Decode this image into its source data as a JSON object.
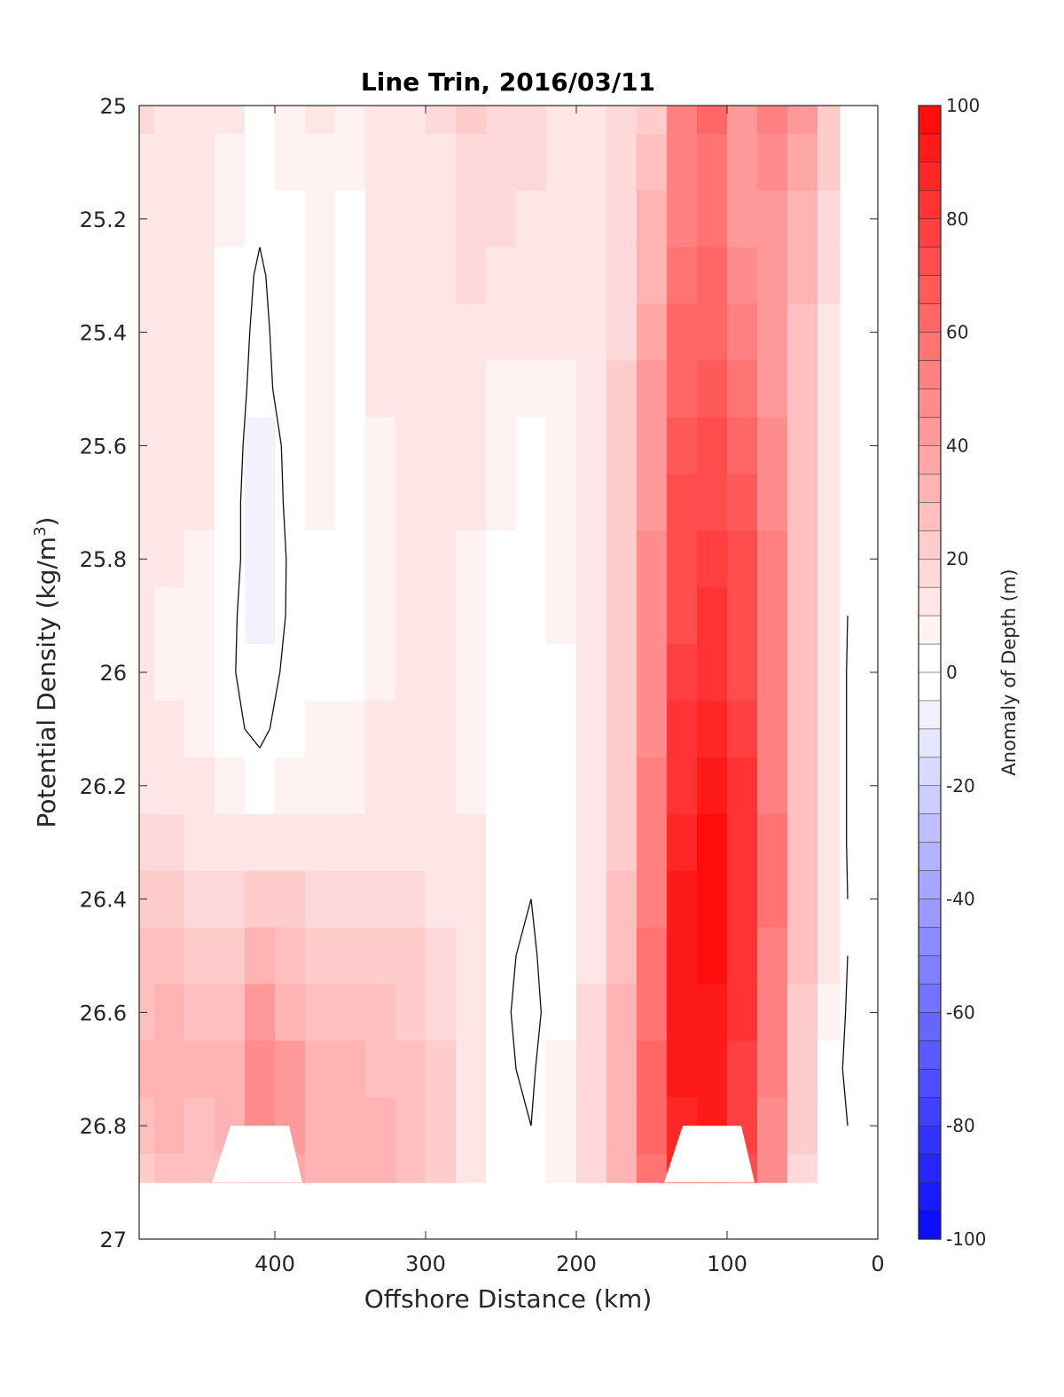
{
  "chart_data": {
    "type": "heatmap",
    "subtype": "filled-contour",
    "title": "Line Trin, 2016/03/11",
    "xlabel": "Offshore Distance (km)",
    "ylabel": "Potential Density (kg/m3)",
    "ylabel_parts": [
      "Potential Density (kg/m",
      "3",
      ")"
    ],
    "colorbar_label": "Anomaly of Depth (m)",
    "x_direction": "reversed",
    "y_direction": "reversed",
    "xlim": [
      490,
      0
    ],
    "ylim": [
      25,
      27
    ],
    "x_ticks": [
      400,
      300,
      200,
      100,
      0
    ],
    "y_ticks": [
      25,
      25.2,
      25.4,
      25.6,
      25.8,
      26,
      26.2,
      26.4,
      26.6,
      26.8,
      27
    ],
    "y_tick_labels": [
      "25",
      "25.2",
      "25.4",
      "25.6",
      "25.8",
      "26",
      "26.2",
      "26.4",
      "26.6",
      "26.8",
      "27"
    ],
    "colorbar_range": [
      -100,
      100
    ],
    "colorbar_ticks": [
      100,
      80,
      60,
      40,
      20,
      0,
      -20,
      -40,
      -60,
      -80,
      -100
    ],
    "contour_interval": 5,
    "colors": {
      "negative": "#0000ff",
      "zero": "#ffffff",
      "positive": "#ff0000"
    },
    "data_coverage": {
      "x_range_km": [
        490,
        20
      ],
      "density_bottom": 26.9,
      "gaps_below_26_8": [
        [
          440,
          380
        ],
        [
          140,
          80
        ]
      ]
    },
    "grid_x_km": [
      490,
      470,
      450,
      430,
      410,
      390,
      370,
      350,
      330,
      310,
      290,
      270,
      250,
      230,
      210,
      190,
      170,
      150,
      130,
      110,
      90,
      70,
      50,
      30,
      20
    ],
    "grid_y_density": [
      25.0,
      25.1,
      25.2,
      25.3,
      25.4,
      25.5,
      25.6,
      25.7,
      25.8,
      25.9,
      26.0,
      26.1,
      26.2,
      26.3,
      26.4,
      26.5,
      26.6,
      26.7,
      26.8,
      26.9
    ],
    "anomaly_m": [
      [
        18,
        14,
        12,
        10,
        4,
        8,
        12,
        8,
        14,
        14,
        16,
        20,
        18,
        18,
        14,
        14,
        16,
        24,
        50,
        60,
        40,
        50,
        40,
        22,
        0
      ],
      [
        14,
        12,
        10,
        8,
        2,
        6,
        8,
        6,
        12,
        12,
        14,
        18,
        18,
        16,
        14,
        14,
        16,
        28,
        52,
        58,
        42,
        48,
        36,
        20,
        0
      ],
      [
        12,
        10,
        10,
        6,
        1,
        4,
        8,
        4,
        12,
        12,
        14,
        16,
        16,
        14,
        14,
        14,
        16,
        32,
        54,
        58,
        44,
        44,
        32,
        18,
        0
      ],
      [
        10,
        10,
        10,
        4,
        -1,
        4,
        8,
        4,
        12,
        12,
        14,
        16,
        14,
        14,
        12,
        14,
        16,
        34,
        56,
        60,
        48,
        42,
        30,
        16,
        0
      ],
      [
        10,
        10,
        10,
        4,
        -2,
        4,
        8,
        4,
        10,
        12,
        14,
        14,
        12,
        12,
        12,
        14,
        18,
        38,
        60,
        64,
        54,
        42,
        28,
        14,
        0
      ],
      [
        10,
        10,
        10,
        4,
        -3,
        4,
        8,
        2,
        10,
        10,
        12,
        12,
        8,
        6,
        8,
        12,
        20,
        40,
        64,
        68,
        58,
        44,
        28,
        14,
        0
      ],
      [
        10,
        10,
        10,
        4,
        -5,
        2,
        6,
        1,
        8,
        10,
        12,
        10,
        6,
        4,
        6,
        12,
        22,
        42,
        68,
        72,
        62,
        46,
        28,
        14,
        0
      ],
      [
        10,
        10,
        10,
        4,
        -7,
        2,
        6,
        1,
        8,
        10,
        10,
        10,
        6,
        4,
        6,
        12,
        24,
        44,
        70,
        74,
        66,
        48,
        28,
        14,
        0
      ],
      [
        10,
        10,
        8,
        4,
        -7,
        1,
        4,
        1,
        8,
        10,
        10,
        8,
        4,
        2,
        6,
        12,
        24,
        46,
        72,
        78,
        70,
        50,
        28,
        12,
        0
      ],
      [
        10,
        8,
        8,
        2,
        -6,
        1,
        2,
        2,
        8,
        10,
        10,
        8,
        0,
        1,
        6,
        12,
        24,
        46,
        74,
        80,
        72,
        52,
        28,
        12,
        0
      ],
      [
        10,
        8,
        6,
        1,
        -4,
        2,
        4,
        4,
        8,
        10,
        10,
        8,
        0,
        0,
        4,
        12,
        24,
        48,
        76,
        84,
        74,
        52,
        28,
        12,
        -1
      ],
      [
        10,
        10,
        8,
        2,
        -2,
        4,
        6,
        6,
        10,
        10,
        10,
        8,
        2,
        2,
        4,
        12,
        24,
        48,
        80,
        88,
        76,
        54,
        28,
        12,
        -1
      ],
      [
        12,
        10,
        10,
        6,
        4,
        8,
        8,
        8,
        10,
        12,
        10,
        8,
        2,
        0,
        4,
        12,
        24,
        50,
        84,
        92,
        80,
        54,
        28,
        12,
        -1
      ],
      [
        16,
        16,
        14,
        12,
        12,
        14,
        12,
        12,
        14,
        14,
        12,
        10,
        2,
        0,
        4,
        12,
        24,
        52,
        88,
        96,
        82,
        56,
        28,
        12,
        -1
      ],
      [
        20,
        20,
        18,
        16,
        20,
        20,
        16,
        16,
        18,
        16,
        14,
        10,
        2,
        0,
        4,
        14,
        26,
        54,
        90,
        98,
        84,
        56,
        28,
        12,
        0
      ],
      [
        26,
        26,
        22,
        22,
        30,
        28,
        22,
        22,
        22,
        20,
        16,
        10,
        1,
        -1,
        4,
        14,
        28,
        56,
        90,
        96,
        82,
        54,
        26,
        10,
        0
      ],
      [
        28,
        30,
        26,
        28,
        40,
        34,
        28,
        28,
        26,
        24,
        18,
        10,
        1,
        -2,
        4,
        16,
        30,
        58,
        90,
        94,
        80,
        52,
        24,
        6,
        -1
      ],
      [
        30,
        32,
        30,
        32,
        48,
        40,
        32,
        32,
        28,
        26,
        20,
        12,
        1,
        -1,
        6,
        18,
        32,
        60,
        90,
        92,
        78,
        50,
        22,
        2,
        -1
      ],
      [
        28,
        30,
        28,
        30,
        46,
        40,
        34,
        34,
        30,
        28,
        22,
        14,
        2,
        0,
        6,
        18,
        34,
        60,
        88,
        90,
        76,
        48,
        20,
        1,
        0
      ],
      [
        24,
        28,
        26,
        28,
        40,
        38,
        34,
        34,
        30,
        28,
        22,
        14,
        2,
        0,
        6,
        18,
        34,
        58,
        86,
        88,
        74,
        46,
        18,
        1,
        0
      ]
    ]
  }
}
